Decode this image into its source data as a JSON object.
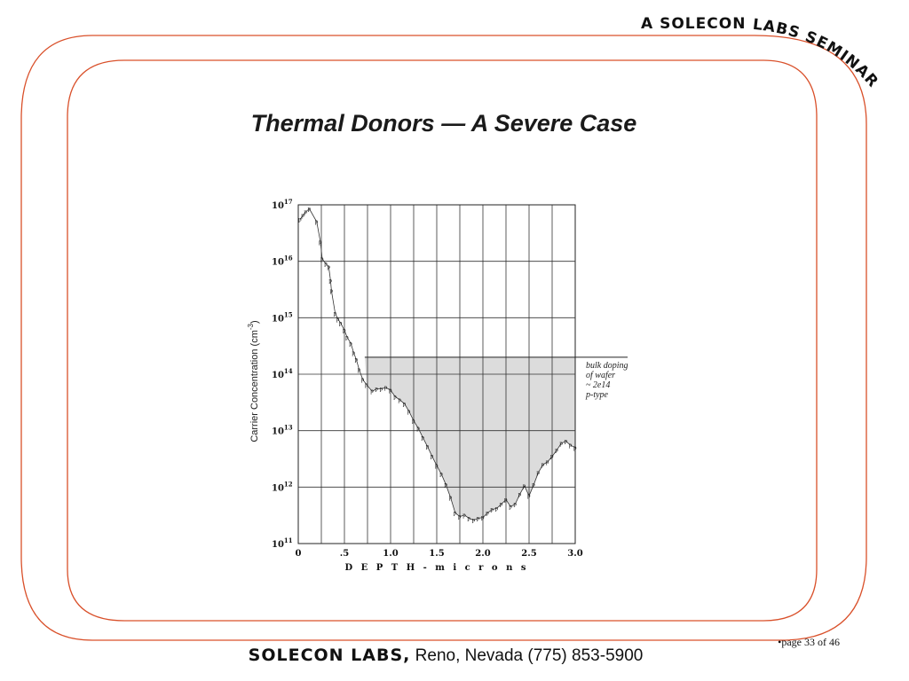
{
  "header": {
    "seminar_banner": "A SOLECON LABS SEMINAR"
  },
  "slide": {
    "title": "Thermal Donors — A Severe Case"
  },
  "footer": {
    "brand": "SOLECON LABS,",
    "address": "Reno, Nevada (775) 853-5900",
    "page": "•page 33 of 46"
  },
  "chart_data": {
    "type": "scatter",
    "title": "",
    "xlabel": "D E P T H - m i c r o n s",
    "ylabel": "Carrier Concentration  (cm",
    "ylabel_exponent": "-3",
    "ylabel_close": ")",
    "xlim": [
      0,
      3.0
    ],
    "ylim": [
      100000000000.0,
      1e+17
    ],
    "yscale": "log",
    "grid": true,
    "point_marker": "p",
    "x_ticks": [
      {
        "value": 0,
        "label": "0"
      },
      {
        "value": 0.5,
        "label": ".5"
      },
      {
        "value": 1.0,
        "label": "1.0"
      },
      {
        "value": 1.5,
        "label": "1.5"
      },
      {
        "value": 2.0,
        "label": "2.0"
      },
      {
        "value": 2.5,
        "label": "2.5"
      },
      {
        "value": 3.0,
        "label": "3.0"
      }
    ],
    "y_ticks": [
      {
        "value": 100000000000.0,
        "base": "10",
        "exp": "11"
      },
      {
        "value": 1000000000000.0,
        "base": "10",
        "exp": "12"
      },
      {
        "value": 10000000000000.0,
        "base": "10",
        "exp": "13"
      },
      {
        "value": 100000000000000.0,
        "base": "10",
        "exp": "14"
      },
      {
        "value": 1000000000000000.0,
        "base": "10",
        "exp": "15"
      },
      {
        "value": 1e+16,
        "base": "10",
        "exp": "16"
      },
      {
        "value": 1e+17,
        "base": "10",
        "exp": "17"
      }
    ],
    "bulk_doping": 200000000000000.0,
    "shaded_region": {
      "x_start": 0.72,
      "x_end": 3.0,
      "upper": 200000000000000.0
    },
    "annotation": [
      "bulk doping",
      "of wafer",
      "~ 2e14",
      "p-type"
    ],
    "series": [
      {
        "points": [
          [
            0.02,
            5.5e+16
          ],
          [
            0.05,
            6.5e+16
          ],
          [
            0.08,
            7.5e+16
          ],
          [
            0.12,
            8.5e+16
          ],
          [
            0.2,
            5e+16
          ],
          [
            0.24,
            2.2e+16
          ],
          [
            0.26,
            1.1e+16
          ],
          [
            0.3,
            9000000000000000.0
          ],
          [
            0.33,
            8000000000000000.0
          ],
          [
            0.35,
            4500000000000000.0
          ],
          [
            0.36,
            3000000000000000.0
          ],
          [
            0.4,
            1200000000000000.0
          ],
          [
            0.43,
            950000000000000.0
          ],
          [
            0.46,
            800000000000000.0
          ],
          [
            0.5,
            600000000000000.0
          ],
          [
            0.53,
            450000000000000.0
          ],
          [
            0.57,
            350000000000000.0
          ],
          [
            0.6,
            240000000000000.0
          ],
          [
            0.63,
            180000000000000.0
          ],
          [
            0.66,
            120000000000000.0
          ],
          [
            0.7,
            80000000000000.0
          ],
          [
            0.74,
            65000000000000.0
          ],
          [
            0.8,
            50000000000000.0
          ],
          [
            0.85,
            55000000000000.0
          ],
          [
            0.9,
            55000000000000.0
          ],
          [
            0.95,
            58000000000000.0
          ],
          [
            1.0,
            52000000000000.0
          ],
          [
            1.05,
            40000000000000.0
          ],
          [
            1.1,
            35000000000000.0
          ],
          [
            1.15,
            30000000000000.0
          ],
          [
            1.2,
            22000000000000.0
          ],
          [
            1.25,
            15000000000000.0
          ],
          [
            1.3,
            11000000000000.0
          ],
          [
            1.35,
            7500000000000.0
          ],
          [
            1.4,
            5200000000000.0
          ],
          [
            1.45,
            3500000000000.0
          ],
          [
            1.5,
            2400000000000.0
          ],
          [
            1.55,
            1700000000000.0
          ],
          [
            1.6,
            1100000000000.0
          ],
          [
            1.65,
            650000000000.0
          ],
          [
            1.7,
            350000000000.0
          ],
          [
            1.75,
            300000000000.0
          ],
          [
            1.8,
            320000000000.0
          ],
          [
            1.85,
            280000000000.0
          ],
          [
            1.9,
            260000000000.0
          ],
          [
            1.95,
            280000000000.0
          ],
          [
            2.0,
            290000000000.0
          ],
          [
            2.05,
            350000000000.0
          ],
          [
            2.1,
            400000000000.0
          ],
          [
            2.15,
            420000000000.0
          ],
          [
            2.2,
            500000000000.0
          ],
          [
            2.25,
            600000000000.0
          ],
          [
            2.3,
            450000000000.0
          ],
          [
            2.35,
            500000000000.0
          ],
          [
            2.4,
            750000000000.0
          ],
          [
            2.45,
            1050000000000.0
          ],
          [
            2.5,
            700000000000.0
          ],
          [
            2.55,
            1100000000000.0
          ],
          [
            2.6,
            1800000000000.0
          ],
          [
            2.65,
            2500000000000.0
          ],
          [
            2.7,
            2800000000000.0
          ],
          [
            2.75,
            3500000000000.0
          ],
          [
            2.8,
            4500000000000.0
          ],
          [
            2.85,
            6000000000000.0
          ],
          [
            2.9,
            6500000000000.0
          ],
          [
            2.95,
            5500000000000.0
          ],
          [
            3.0,
            5000000000000.0
          ]
        ]
      }
    ]
  }
}
